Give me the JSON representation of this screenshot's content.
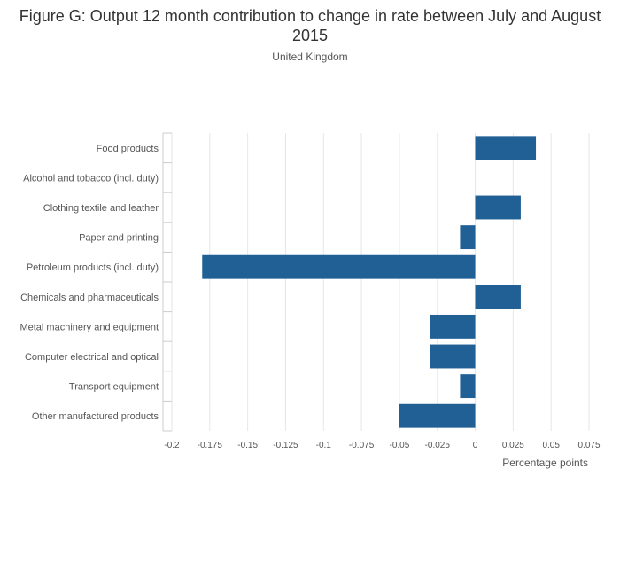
{
  "chart_data": {
    "type": "bar",
    "orientation": "horizontal",
    "title": "Figure G: Output 12 month contribution to change in rate between July and August 2015",
    "subtitle": "United Kingdom",
    "xlabel": "Percentage points",
    "ylabel": "",
    "xlim": [
      -0.2,
      0.075
    ],
    "xticks": [
      -0.2,
      -0.175,
      -0.15,
      -0.125,
      -0.1,
      -0.075,
      -0.05,
      -0.025,
      0,
      0.025,
      0.05,
      0.075
    ],
    "xtick_labels": [
      "-0.2",
      "-0.175",
      "-0.15",
      "-0.125",
      "-0.1",
      "-0.075",
      "-0.05",
      "-0.025",
      "0",
      "0.025",
      "0.05",
      "0.075"
    ],
    "grid": true,
    "bar_color": "#206095",
    "categories": [
      "Food products",
      "Alcohol and tobacco (incl. duty)",
      "Clothing textile and leather",
      "Paper and printing",
      "Petroleum products (incl. duty)",
      "Chemicals and pharmaceuticals",
      "Metal machinery and equipment",
      "Computer electrical and optical",
      "Transport equipment",
      "Other manufactured products"
    ],
    "values": [
      0.04,
      0,
      0.03,
      -0.01,
      -0.18,
      0.03,
      -0.03,
      -0.03,
      -0.01,
      -0.05
    ]
  }
}
